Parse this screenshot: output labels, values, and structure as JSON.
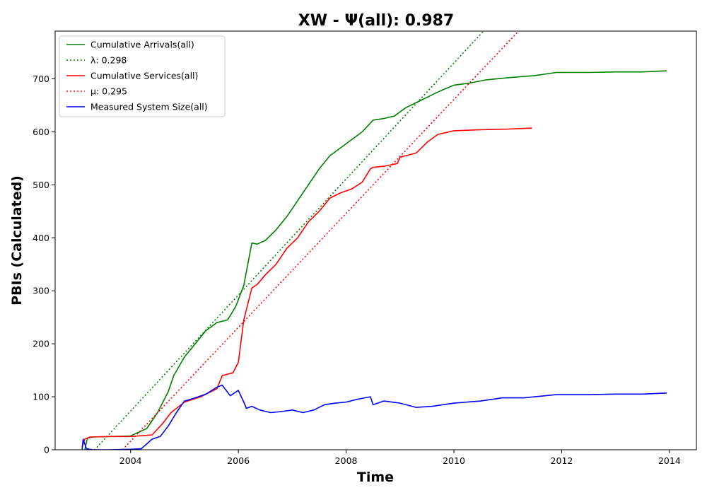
{
  "chart_data": {
    "type": "line",
    "title": "XW -  Ψ(all): 0.987",
    "xlabel": "Time",
    "ylabel": "PBIs (Calculated)",
    "xlim": [
      2002.6,
      2014.5
    ],
    "ylim": [
      0,
      790
    ],
    "xticks": [
      2004,
      2006,
      2008,
      2010,
      2012,
      2014
    ],
    "yticks": [
      0,
      100,
      200,
      300,
      400,
      500,
      600,
      700
    ],
    "grid": false,
    "legend_position": "top-left",
    "series": [
      {
        "name": "Cumulative Arrivals(all)",
        "style": "solid",
        "color": "#008000",
        "x": [
          2003.15,
          2003.2,
          2003.3,
          2003.6,
          2004.0,
          2004.3,
          2004.5,
          2004.7,
          2004.8,
          2005.0,
          2005.2,
          2005.4,
          2005.6,
          2005.8,
          2005.95,
          2006.1,
          2006.25,
          2006.35,
          2006.5,
          2006.7,
          2006.9,
          2007.1,
          2007.3,
          2007.5,
          2007.7,
          2007.9,
          2008.1,
          2008.3,
          2008.5,
          2008.7,
          2008.9,
          2009.1,
          2009.4,
          2009.7,
          2010.0,
          2010.3,
          2010.6,
          2011.0,
          2011.5,
          2011.9,
          2012.5,
          2013.0,
          2013.5,
          2013.95
        ],
        "y": [
          0,
          22,
          24,
          25,
          26,
          40,
          70,
          110,
          140,
          175,
          200,
          225,
          240,
          245,
          270,
          310,
          390,
          388,
          395,
          415,
          440,
          470,
          500,
          530,
          555,
          570,
          585,
          600,
          622,
          625,
          630,
          645,
          660,
          675,
          688,
          692,
          698,
          702,
          706,
          712,
          712,
          713,
          713,
          715
        ]
      },
      {
        "name": "λ: 0.298",
        "style": "dotted",
        "color": "#008000",
        "x": [
          2003.15,
          2010.55
        ],
        "y": [
          -20,
          790
        ]
      },
      {
        "name": "Cumulative Services(all)",
        "style": "solid",
        "color": "#ff0000",
        "x": [
          2003.1,
          2003.15,
          2003.25,
          2003.6,
          2004.0,
          2004.4,
          2004.6,
          2004.75,
          2005.0,
          2005.3,
          2005.6,
          2005.7,
          2005.9,
          2006.0,
          2006.1,
          2006.25,
          2006.35,
          2006.5,
          2006.7,
          2006.9,
          2007.1,
          2007.3,
          2007.5,
          2007.7,
          2007.9,
          2008.1,
          2008.3,
          2008.45,
          2008.5,
          2008.7,
          2008.95,
          2009.0,
          2009.3,
          2009.5,
          2009.7,
          2010.0,
          2010.5,
          2011.0,
          2011.45
        ],
        "y": [
          5,
          20,
          24,
          25,
          25,
          28,
          50,
          70,
          90,
          100,
          115,
          140,
          145,
          165,
          245,
          305,
          312,
          330,
          350,
          380,
          400,
          430,
          450,
          475,
          485,
          492,
          505,
          530,
          533,
          535,
          540,
          552,
          560,
          580,
          595,
          602,
          604,
          605,
          607
        ]
      },
      {
        "name": "μ: 0.295",
        "style": "dotted",
        "color": "#ff0000",
        "x": [
          2003.85,
          2011.2
        ],
        "y": [
          0,
          790
        ]
      },
      {
        "name": "Measured System Size(all)",
        "style": "solid",
        "color": "#0000ff",
        "x": [
          2003.1,
          2003.12,
          2003.18,
          2003.3,
          2003.6,
          2004.0,
          2004.2,
          2004.4,
          2004.55,
          2004.7,
          2004.85,
          2005.0,
          2005.2,
          2005.4,
          2005.6,
          2005.7,
          2005.85,
          2006.0,
          2006.1,
          2006.15,
          2006.25,
          2006.4,
          2006.6,
          2006.8,
          2007.0,
          2007.2,
          2007.4,
          2007.6,
          2007.8,
          2008.0,
          2008.2,
          2008.45,
          2008.5,
          2008.7,
          2009.0,
          2009.3,
          2009.6,
          2010.0,
          2010.5,
          2010.9,
          2011.3,
          2011.9,
          2012.5,
          2013.0,
          2013.5,
          2013.95
        ],
        "y": [
          0,
          20,
          2,
          0,
          0,
          1,
          2,
          20,
          25,
          45,
          70,
          92,
          98,
          105,
          118,
          122,
          102,
          112,
          90,
          78,
          82,
          75,
          70,
          72,
          75,
          70,
          75,
          85,
          88,
          90,
          95,
          100,
          85,
          92,
          88,
          80,
          82,
          88,
          92,
          98,
          98,
          104,
          104,
          105,
          105,
          107
        ]
      }
    ]
  }
}
